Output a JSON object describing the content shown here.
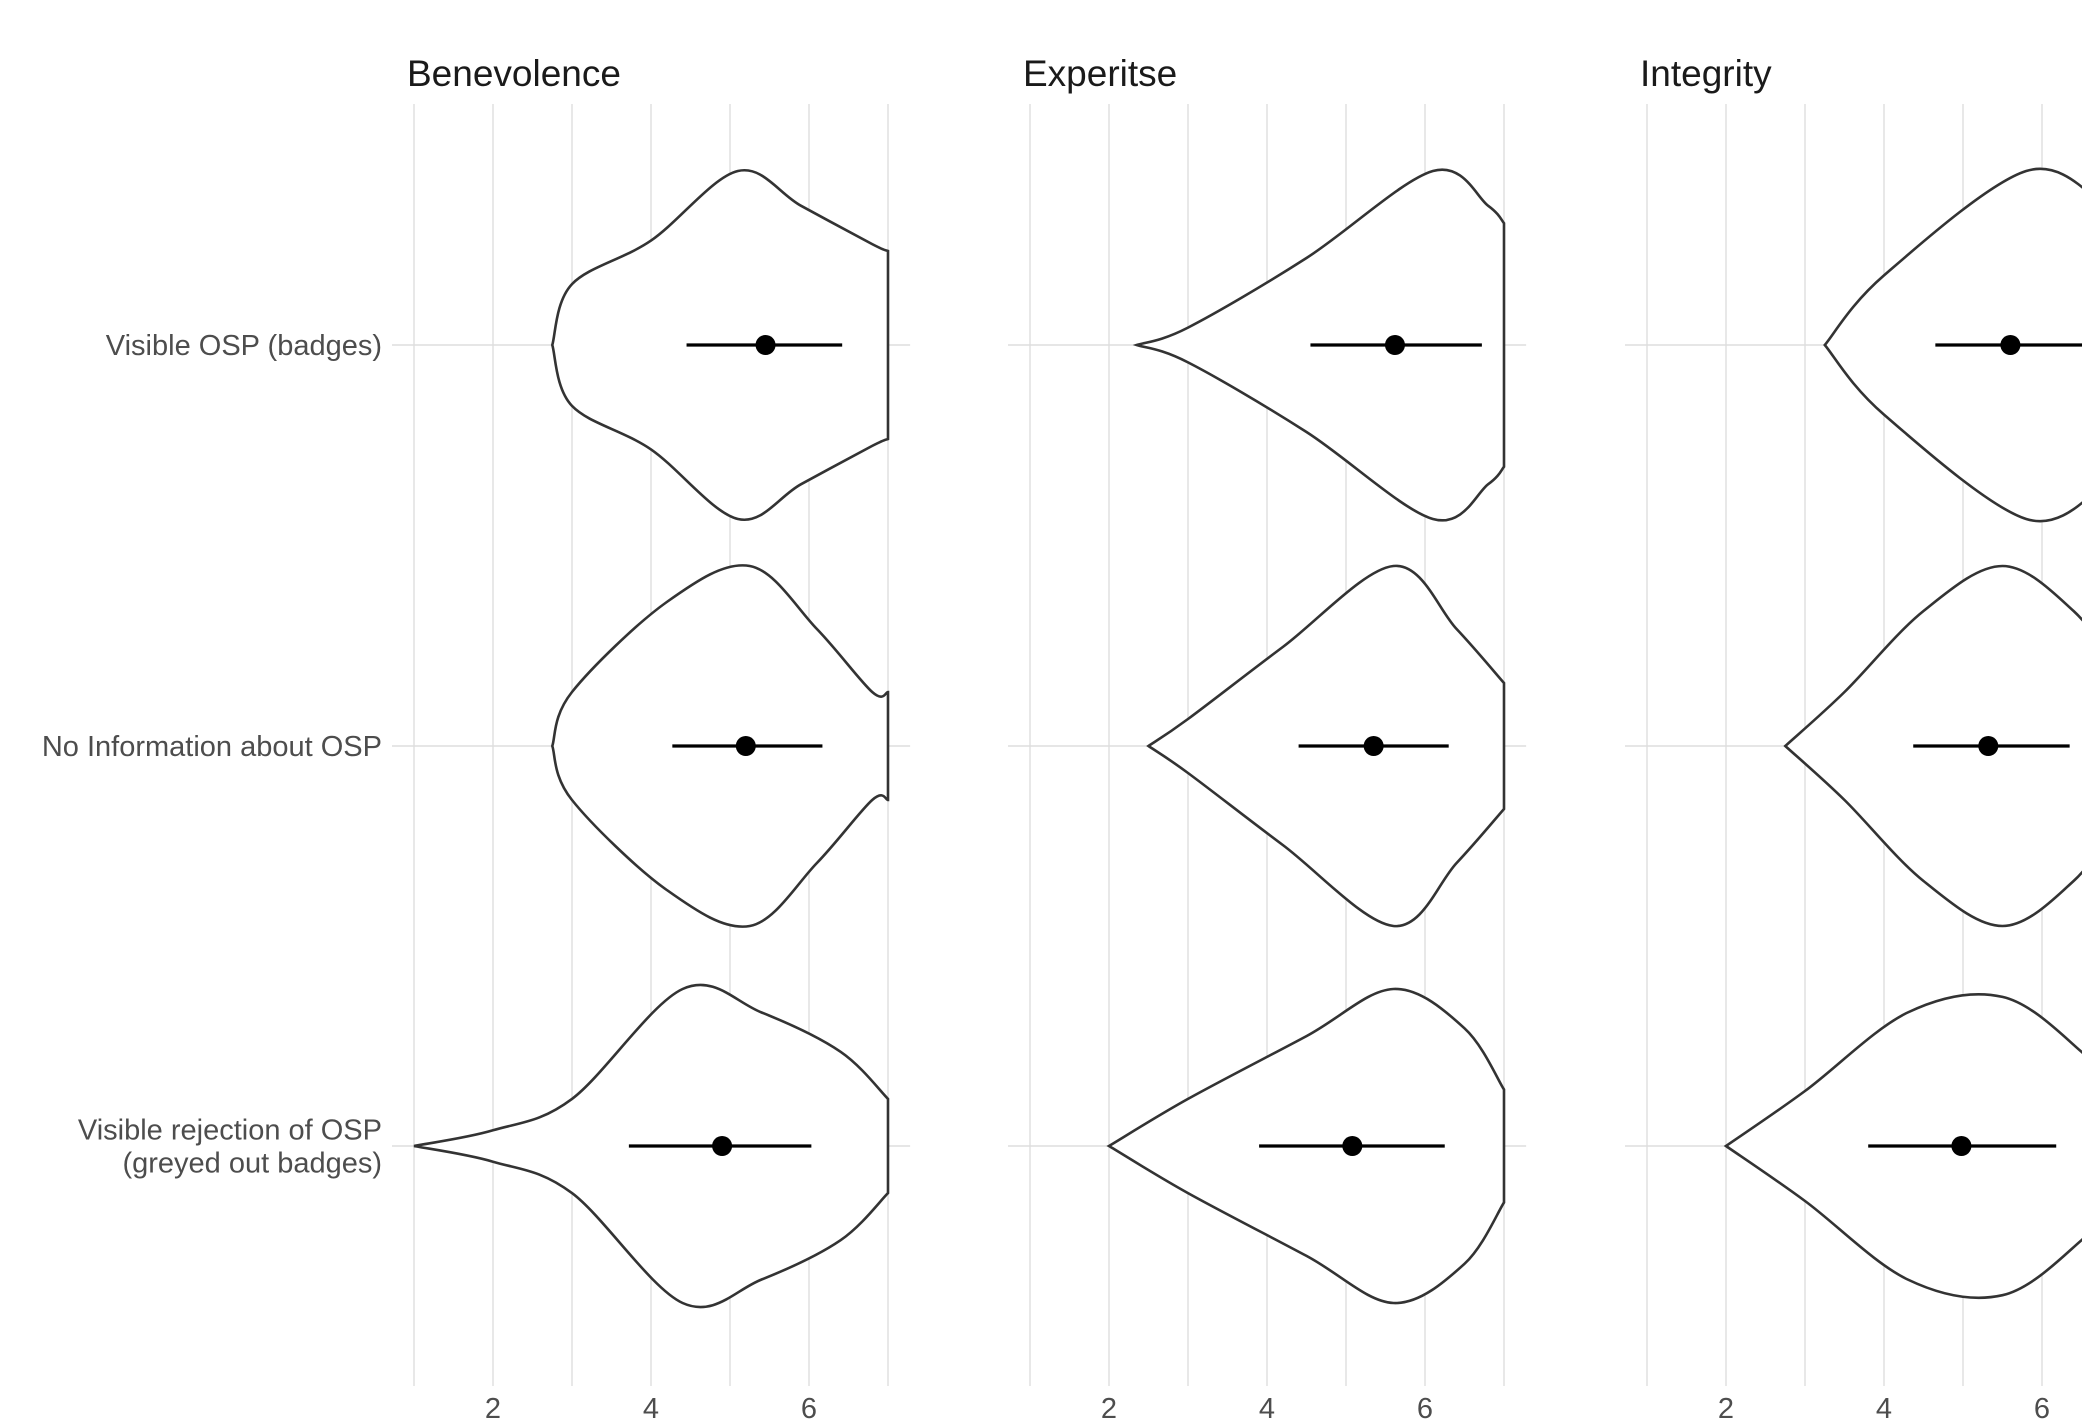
{
  "chart_data": {
    "type": "violin",
    "title": "",
    "xlabel": "",
    "ylabel": "",
    "categories": [
      "Visible OSP (badges)",
      "No Information about OSP",
      "Visible rejection of OSP\n(greyed out badges)"
    ],
    "xlim": [
      1,
      7.3
    ],
    "xticks": [
      2,
      4,
      6
    ],
    "grid": true,
    "legend": "none",
    "panels": [
      {
        "title": "Benevolence",
        "groups": [
          {
            "category": "Visible OSP (badges)",
            "mean": 5.45,
            "ci": [
              4.45,
              6.42
            ],
            "profile": [
              [
                2.75,
                0
              ],
              [
                3.0,
                0.35
              ],
              [
                4.0,
                0.6
              ],
              [
                5.1,
                1.0
              ],
              [
                5.9,
                0.8
              ],
              [
                6.8,
                0.58
              ],
              [
                7.0,
                0.54
              ]
            ]
          },
          {
            "category": "No Information about OSP",
            "mean": 5.2,
            "ci": [
              4.27,
              6.17
            ],
            "profile": [
              [
                2.75,
                0
              ],
              [
                3.0,
                0.3
              ],
              [
                4.2,
                0.8
              ],
              [
                5.25,
                1.0
              ],
              [
                6.1,
                0.65
              ],
              [
                6.8,
                0.3
              ],
              [
                7.0,
                0.3
              ]
            ]
          },
          {
            "category": "Visible rejection of OSP\n(greyed out badges)",
            "mean": 4.9,
            "ci": [
              3.72,
              6.03
            ],
            "profile": [
              [
                1.0,
                0
              ],
              [
                2.0,
                0.1
              ],
              [
                3.0,
                0.3
              ],
              [
                4.4,
                1.0
              ],
              [
                5.4,
                0.85
              ],
              [
                6.4,
                0.6
              ],
              [
                7.0,
                0.3
              ]
            ]
          }
        ]
      },
      {
        "title": "Experitse",
        "groups": [
          {
            "category": "Visible OSP (badges)",
            "mean": 5.62,
            "ci": [
              4.55,
              6.72
            ],
            "profile": [
              [
                2.35,
                0
              ],
              [
                3.0,
                0.1
              ],
              [
                4.5,
                0.5
              ],
              [
                6.1,
                1.0
              ],
              [
                6.8,
                0.8
              ],
              [
                7.0,
                0.7
              ]
            ]
          },
          {
            "category": "No Information about OSP",
            "mean": 5.35,
            "ci": [
              4.4,
              6.3
            ],
            "profile": [
              [
                2.5,
                0
              ],
              [
                3.0,
                0.15
              ],
              [
                4.2,
                0.55
              ],
              [
                5.6,
                1.0
              ],
              [
                6.4,
                0.65
              ],
              [
                7.0,
                0.35
              ]
            ]
          },
          {
            "category": "Visible rejection of OSP\n(greyed out badges)",
            "mean": 5.08,
            "ci": [
              3.9,
              6.25
            ],
            "profile": [
              [
                2.0,
                0
              ],
              [
                3.0,
                0.3
              ],
              [
                4.5,
                0.7
              ],
              [
                5.6,
                1.0
              ],
              [
                6.5,
                0.75
              ],
              [
                7.0,
                0.36
              ]
            ]
          }
        ]
      },
      {
        "title": "Integrity",
        "groups": [
          {
            "category": "Visible OSP (badges)",
            "mean": 5.6,
            "ci": [
              4.65,
              6.65
            ],
            "profile": [
              [
                3.25,
                0
              ],
              [
                4.0,
                0.4
              ],
              [
                5.8,
                1.0
              ],
              [
                6.8,
                0.8
              ],
              [
                7.0,
                0.7
              ]
            ]
          },
          {
            "category": "No Information about OSP",
            "mean": 5.32,
            "ci": [
              4.37,
              6.35
            ],
            "profile": [
              [
                2.75,
                0
              ],
              [
                3.5,
                0.3
              ],
              [
                4.5,
                0.75
              ],
              [
                5.5,
                1.0
              ],
              [
                6.4,
                0.75
              ],
              [
                7.0,
                0.4
              ]
            ]
          },
          {
            "category": "Visible rejection of OSP\n(greyed out badges)",
            "mean": 4.98,
            "ci": [
              3.8,
              6.18
            ],
            "profile": [
              [
                2.0,
                0
              ],
              [
                3.0,
                0.35
              ],
              [
                4.3,
                0.85
              ],
              [
                5.5,
                0.95
              ],
              [
                6.5,
                0.6
              ],
              [
                7.0,
                0.3
              ]
            ]
          }
        ]
      }
    ]
  }
}
